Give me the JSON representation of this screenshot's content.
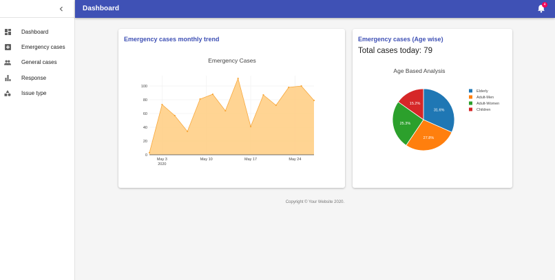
{
  "header": {
    "title": "Dashboard",
    "notification_count": "4"
  },
  "sidebar": {
    "items": [
      {
        "label": "Dashboard",
        "icon": "dashboard-icon"
      },
      {
        "label": "Emergency cases",
        "icon": "plus-box-icon"
      },
      {
        "label": "General cases",
        "icon": "people-icon"
      },
      {
        "label": "Response",
        "icon": "bar-chart-icon"
      },
      {
        "label": "Issue type",
        "icon": "category-icon"
      }
    ]
  },
  "trend_card": {
    "title": "Emergency cases monthly trend"
  },
  "age_card": {
    "title": "Emergency cases (Age wise)",
    "total_text": "Total cases today: 79"
  },
  "footer": {
    "text": "Copyright © Your Website 2020."
  },
  "colors": {
    "primary": "#3f51b5",
    "badge": "#f50057",
    "area_fill": "#ffcc80",
    "area_line": "#f7a73b"
  },
  "chart_data": [
    {
      "type": "area",
      "title": "Emergency Cases",
      "x": [
        "2020-05-01",
        "2020-05-03",
        "2020-05-05",
        "2020-05-07",
        "2020-05-09",
        "2020-05-11",
        "2020-05-13",
        "2020-05-15",
        "2020-05-17",
        "2020-05-19",
        "2020-05-21",
        "2020-05-23",
        "2020-05-25",
        "2020-05-27"
      ],
      "values": [
        3,
        73,
        57,
        34,
        81,
        88,
        64,
        111,
        41,
        87,
        72,
        98,
        100,
        79
      ],
      "x_ticks": [
        "May 3\n2020",
        "May 10",
        "May 17",
        "May 24"
      ],
      "y_ticks": [
        "0",
        "20",
        "40",
        "60",
        "80",
        "100"
      ],
      "ylim": [
        0,
        115
      ],
      "grid": true
    },
    {
      "type": "pie",
      "title": "Age Based Analysis",
      "labels": [
        "Elderly",
        "Adult-Men",
        "Adult-Women",
        "Children"
      ],
      "values": [
        31.6,
        27.8,
        25.3,
        15.2
      ],
      "value_labels": [
        "31.6%",
        "27.8%",
        "25.3%",
        "15.2%"
      ],
      "colors": [
        "#1f77b4",
        "#ff7f0e",
        "#2ca02c",
        "#d62728"
      ],
      "legend_position": "right"
    }
  ]
}
